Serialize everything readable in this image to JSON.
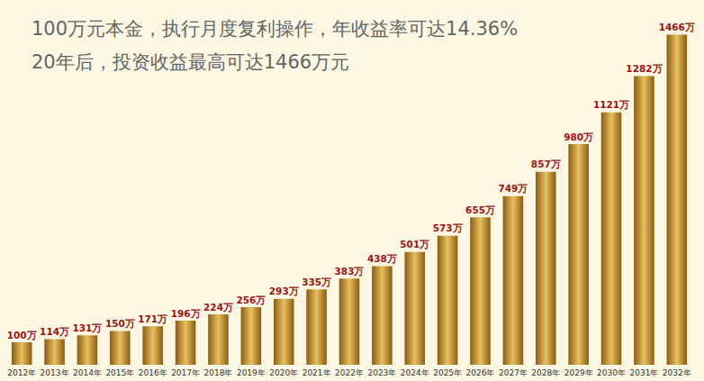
{
  "chart_data": {
    "type": "bar",
    "title": "100万元本金，执行月度复利操作，年收益率可达14.36%",
    "subtitle": "20年后，投资收益最高可达1466万元",
    "categories": [
      "2012年",
      "2013年",
      "2014年",
      "2015年",
      "2016年",
      "2017年",
      "2018年",
      "2019年",
      "2020年",
      "2021年",
      "2022年",
      "2023年",
      "2024年",
      "2025年",
      "2026年",
      "2027年",
      "2028年",
      "2029年",
      "2030年",
      "2031年",
      "2032年"
    ],
    "values": [
      100,
      114,
      131,
      150,
      171,
      196,
      224,
      256,
      293,
      335,
      383,
      438,
      501,
      573,
      655,
      749,
      857,
      980,
      1121,
      1282,
      1466
    ],
    "value_labels": [
      "100万",
      "114万",
      "131万",
      "150万",
      "171万",
      "196万",
      "224万",
      "256万",
      "293万",
      "335万",
      "383万",
      "438万",
      "501万",
      "573万",
      "655万",
      "749万",
      "857万",
      "980万",
      "1121万",
      "1282万",
      "1466万"
    ],
    "color": "#e8c060",
    "ylim": [
      0,
      1500
    ],
    "grid": false,
    "data_labels": true,
    "tick_labels": "x"
  }
}
